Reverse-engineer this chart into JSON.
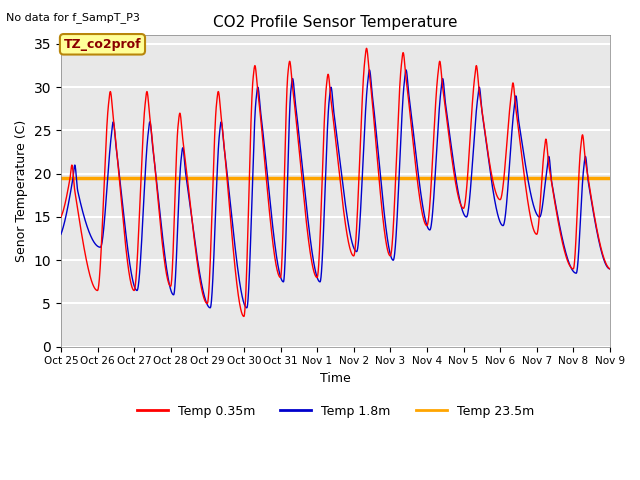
{
  "title": "CO2 Profile Sensor Temperature",
  "top_left_text": "No data for f_SampT_P3",
  "annotation_text": "TZ_co2prof",
  "annotation_box_color": "#FFFF99",
  "annotation_border_color": "#B8860B",
  "xlabel": "Time",
  "ylabel": "Senor Temperature (C)",
  "ylim": [
    0,
    36
  ],
  "yticks": [
    0,
    5,
    10,
    15,
    20,
    25,
    30,
    35
  ],
  "bg_color": "#E8E8E8",
  "grid_color": "white",
  "temp_23_5m_value": 19.5,
  "line_colors": {
    "temp_035m": "#FF0000",
    "temp_18m": "#0000CC",
    "temp_235m": "#FFA500"
  },
  "legend_labels": [
    "Temp 0.35m",
    "Temp 1.8m",
    "Temp 23.5m"
  ],
  "x_tick_labels": [
    "Oct 25",
    "Oct 26",
    "Oct 27",
    "Oct 28",
    "Oct 29",
    "Oct 30",
    "Oct 31",
    "Nov 1",
    "Nov 2",
    "Nov 3",
    "Nov 4",
    "Nov 5",
    "Nov 6",
    "Nov 7",
    "Nov 8",
    "Nov 9"
  ]
}
